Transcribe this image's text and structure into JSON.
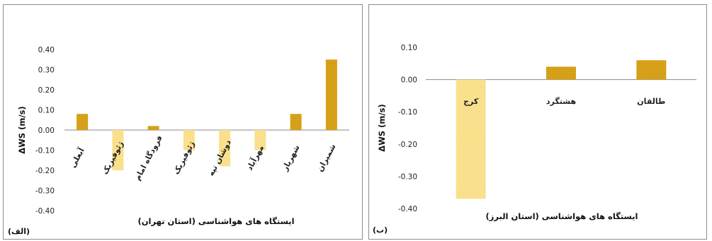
{
  "colors": {
    "positive_bar": "#d9a31a",
    "negative_bar": "#f5cf4a",
    "pattern_dot": "#c98f10"
  },
  "chart_data": [
    {
      "type": "bar",
      "panel_label": "(الف)",
      "xlabel": "ایستگاه های هواشناسی (استان تهران)",
      "ylabel": "ΔWS (m/s)",
      "ylim": [
        -0.4,
        0.4
      ],
      "yticks": [
        "0.40",
        "0.30",
        "0.20",
        "0.10",
        "0.00",
        "-0.10",
        "-0.20",
        "-0.30",
        "-0.40"
      ],
      "ytick_values": [
        0.4,
        0.3,
        0.2,
        0.1,
        0.0,
        -0.1,
        -0.2,
        -0.3,
        -0.4
      ],
      "categories": [
        "آبعلی",
        "ژئوفیزیک",
        "فرودگاه امام",
        "ژئوفیزیک",
        "دوشان تپه",
        "مهرآباد",
        "شهریار",
        "شمیران"
      ],
      "values": [
        0.08,
        -0.2,
        0.02,
        -0.1,
        -0.18,
        -0.1,
        0.08,
        0.35
      ],
      "grid": false
    },
    {
      "type": "bar",
      "panel_label": "(ب)",
      "xlabel": "ایستگاه های هواشناسی (استان البرز)",
      "ylabel": "ΔWS (m/s)",
      "ylim": [
        -0.4,
        0.1
      ],
      "yticks": [
        "0.10",
        "0.00",
        "-0.10",
        "-0.20",
        "-0.30",
        "-0.40"
      ],
      "ytick_values": [
        0.1,
        0.0,
        -0.1,
        -0.2,
        -0.3,
        -0.4
      ],
      "categories": [
        "کرج",
        "هشتگرد",
        "طالقان"
      ],
      "values": [
        -0.37,
        0.04,
        0.06
      ],
      "grid": false
    }
  ]
}
